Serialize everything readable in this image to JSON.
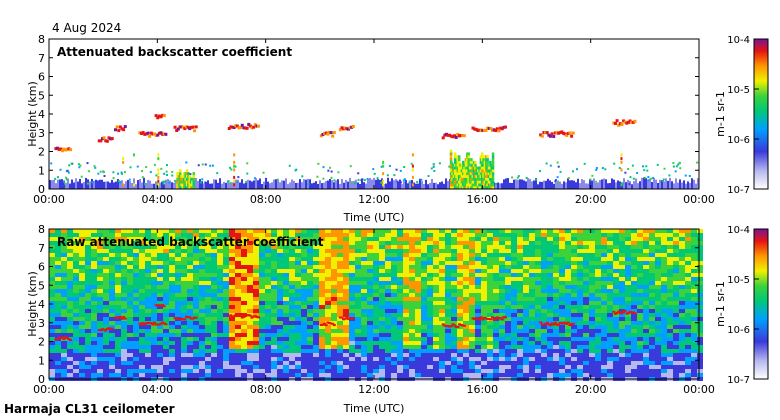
{
  "date_label": "4 Aug 2024",
  "footer": "Harmaja CL31 ceilometer",
  "chart_data": [
    {
      "type": "heatmap",
      "title": "Attenuated backscatter coefficient",
      "xlabel": "Time (UTC)",
      "ylabel": "Height (km)",
      "xlim": [
        0,
        24
      ],
      "ylim": [
        0,
        8
      ],
      "x_ticks": [
        "00:00",
        "04:00",
        "08:00",
        "12:00",
        "16:00",
        "20:00",
        "00:00"
      ],
      "y_ticks": [
        "0",
        "1",
        "2",
        "3",
        "4",
        "5",
        "6",
        "7",
        "8"
      ],
      "colorbar": {
        "label": "m-1 sr-1",
        "scale": "log",
        "range": [
          1e-07,
          0.0001
        ],
        "tick_labels": [
          "10-7",
          "10-6",
          "10-5",
          "10-4"
        ]
      },
      "cloud_layers": [
        {
          "start": 0.2,
          "end": 0.8,
          "height": 2.2
        },
        {
          "start": 1.8,
          "end": 2.3,
          "height": 2.7
        },
        {
          "start": 2.4,
          "end": 2.8,
          "height": 3.3
        },
        {
          "start": 3.3,
          "end": 4.3,
          "height": 3.0
        },
        {
          "start": 4.6,
          "end": 5.4,
          "height": 3.3
        },
        {
          "start": 3.9,
          "end": 4.2,
          "height": 4.0
        },
        {
          "start": 6.6,
          "end": 7.7,
          "height": 3.4
        },
        {
          "start": 10.0,
          "end": 10.5,
          "height": 3.0
        },
        {
          "start": 10.7,
          "end": 11.2,
          "height": 3.3
        },
        {
          "start": 14.5,
          "end": 15.3,
          "height": 2.9
        },
        {
          "start": 15.6,
          "end": 16.8,
          "height": 3.3
        },
        {
          "start": 18.1,
          "end": 19.3,
          "height": 3.0
        },
        {
          "start": 20.8,
          "end": 21.6,
          "height": 3.6
        }
      ],
      "low_signal_events": [
        {
          "start": 14.8,
          "end": 16.4,
          "top_km": 2.0
        },
        {
          "start": 4.7,
          "end": 5.3,
          "top_km": 1.0
        }
      ]
    },
    {
      "type": "heatmap",
      "title": "Raw attenuated backscatter coefficient",
      "xlabel": "Time (UTC)",
      "ylabel": "Height (km)",
      "xlim": [
        0,
        24
      ],
      "ylim": [
        0,
        8
      ],
      "x_ticks": [
        "00:00",
        "04:00",
        "08:00",
        "12:00",
        "16:00",
        "20:00",
        "00:00"
      ],
      "y_ticks": [
        "0",
        "1",
        "2",
        "3",
        "4",
        "5",
        "6",
        "7",
        "8"
      ],
      "colorbar": {
        "label": "m-1 sr-1",
        "scale": "log",
        "range": [
          1e-07,
          0.0001
        ],
        "tick_labels": [
          "10-7",
          "10-6",
          "10-5",
          "10-4"
        ]
      },
      "noise_bands": [
        {
          "start": 6.5,
          "end": 7.7,
          "level": 0.85
        },
        {
          "start": 9.8,
          "end": 11.0,
          "level": 0.8
        },
        {
          "start": 12.9,
          "end": 13.7,
          "level": 0.75
        },
        {
          "start": 14.0,
          "end": 14.4,
          "level": 0.7
        },
        {
          "start": 15.0,
          "end": 15.6,
          "level": 0.75
        },
        {
          "start": 15.8,
          "end": 16.2,
          "level": 0.6
        }
      ]
    }
  ]
}
